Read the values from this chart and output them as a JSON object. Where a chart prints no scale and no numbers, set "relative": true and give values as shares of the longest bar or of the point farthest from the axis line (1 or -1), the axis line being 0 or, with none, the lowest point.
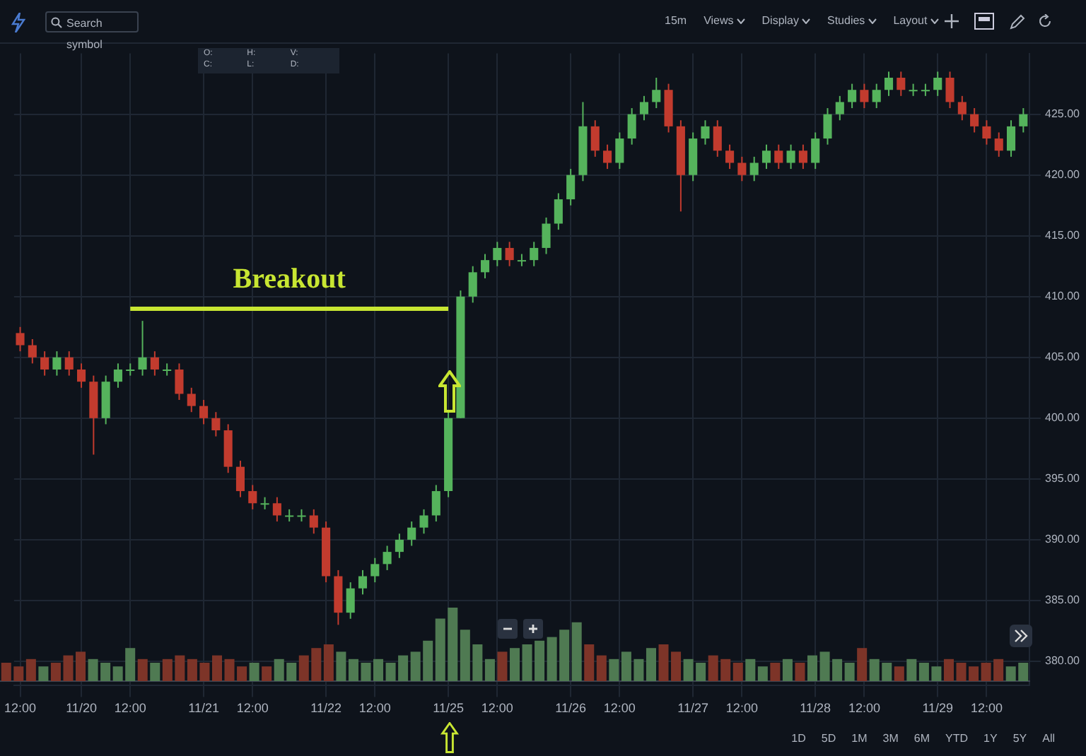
{
  "chart_data": [
    {
      "type": "candlestick",
      "grid": true,
      "ylim": [
        378,
        430
      ],
      "yticks": [
        {
          "value": 380,
          "label": "380.00"
        },
        {
          "value": 385,
          "label": "385.00"
        },
        {
          "value": 390,
          "label": "390.00"
        },
        {
          "value": 395,
          "label": "395.00"
        },
        {
          "value": 400,
          "label": "400.00"
        },
        {
          "value": 405,
          "label": "405.00"
        },
        {
          "value": 410,
          "label": "410.00"
        },
        {
          "value": 415,
          "label": "415.00"
        },
        {
          "value": 420,
          "label": "420.00"
        },
        {
          "value": 425,
          "label": "425.00"
        }
      ],
      "categories": [
        "12:00",
        null,
        null,
        null,
        null,
        "11/20",
        null,
        null,
        null,
        "12:00",
        null,
        null,
        null,
        null,
        null,
        "11/21",
        null,
        null,
        null,
        "12:00",
        null,
        null,
        null,
        null,
        null,
        "11/22",
        null,
        null,
        null,
        "12:00",
        null,
        null,
        null,
        null,
        null,
        "11/25",
        null,
        null,
        null,
        "12:00",
        null,
        null,
        null,
        null,
        null,
        "11/26",
        null,
        null,
        null,
        "12:00",
        null,
        null,
        null,
        null,
        null,
        "11/27",
        null,
        null,
        null,
        "12:00",
        null,
        null,
        null,
        null,
        null,
        "11/28",
        null,
        null,
        null,
        "12:00",
        null,
        null,
        null,
        null,
        null,
        "11/29",
        null,
        null,
        null,
        "12:00",
        null,
        null,
        null
      ],
      "ohlc": [
        [
          407,
          407.5,
          405.5,
          406
        ],
        [
          406,
          406.5,
          404.5,
          405
        ],
        [
          405,
          405.5,
          403.5,
          404
        ],
        [
          404,
          405.5,
          403.5,
          405
        ],
        [
          405,
          405.5,
          403.5,
          404
        ],
        [
          404,
          404.5,
          402.5,
          403
        ],
        [
          403,
          403.5,
          397,
          400
        ],
        [
          400,
          403.5,
          399.5,
          403
        ],
        [
          403,
          404.5,
          402.5,
          404
        ],
        [
          404,
          404.5,
          403.5,
          404
        ],
        [
          404,
          408,
          403.5,
          405
        ],
        [
          405,
          405.5,
          403.5,
          404
        ],
        [
          404,
          404.5,
          403.5,
          404
        ],
        [
          404,
          404.5,
          401.5,
          402
        ],
        [
          402,
          402.5,
          400.5,
          401
        ],
        [
          401,
          401.5,
          399.5,
          400
        ],
        [
          400,
          400.5,
          398.5,
          399
        ],
        [
          399,
          399.5,
          395.5,
          396
        ],
        [
          396,
          396.5,
          393.5,
          394
        ],
        [
          394,
          394.5,
          392.5,
          393
        ],
        [
          393,
          393.5,
          392.5,
          393
        ],
        [
          393,
          393.5,
          391.5,
          392
        ],
        [
          392,
          392.5,
          391.5,
          392
        ],
        [
          392,
          392.5,
          391.5,
          392
        ],
        [
          392,
          392.5,
          390.5,
          391
        ],
        [
          391,
          391.5,
          386.5,
          387
        ],
        [
          387,
          387.5,
          383,
          384
        ],
        [
          384,
          386.5,
          383.5,
          386
        ],
        [
          386,
          387.5,
          385.5,
          387
        ],
        [
          387,
          388.5,
          386.5,
          388
        ],
        [
          388,
          389.5,
          387.5,
          389
        ],
        [
          389,
          390.5,
          388.5,
          390
        ],
        [
          390,
          391.5,
          389.5,
          391
        ],
        [
          391,
          392.5,
          390.5,
          392
        ],
        [
          392,
          394.5,
          391.5,
          394
        ],
        [
          394,
          400.5,
          393.5,
          400
        ],
        [
          400,
          410.5,
          400,
          410
        ],
        [
          410,
          412.5,
          409.5,
          412
        ],
        [
          412,
          413.5,
          411.5,
          413
        ],
        [
          413,
          414.5,
          412.5,
          414
        ],
        [
          414,
          414.5,
          412.5,
          413
        ],
        [
          413,
          413.5,
          412.5,
          413
        ],
        [
          413,
          414.5,
          412.5,
          414
        ],
        [
          414,
          416.5,
          413.5,
          416
        ],
        [
          416,
          418.5,
          415.5,
          418
        ],
        [
          418,
          420.5,
          417.5,
          420
        ],
        [
          420,
          426,
          419.5,
          424
        ],
        [
          424,
          424.5,
          421.5,
          422
        ],
        [
          422,
          422.5,
          420.5,
          421
        ],
        [
          421,
          423.5,
          420.5,
          423
        ],
        [
          423,
          425.5,
          422.5,
          425
        ],
        [
          425,
          426.5,
          424.5,
          426
        ],
        [
          426,
          428,
          425.5,
          427
        ],
        [
          427,
          427.5,
          423.5,
          424
        ],
        [
          424,
          424.5,
          417,
          420
        ],
        [
          420,
          423.5,
          419.5,
          423
        ],
        [
          423,
          424.5,
          422.5,
          424
        ],
        [
          424,
          424.5,
          421.5,
          422
        ],
        [
          422,
          422.5,
          420.5,
          421
        ],
        [
          421,
          421.5,
          419.5,
          420
        ],
        [
          420,
          421.5,
          419.5,
          421
        ],
        [
          421,
          422.5,
          420.5,
          422
        ],
        [
          422,
          422.5,
          420.5,
          421
        ],
        [
          421,
          422.5,
          420.5,
          422
        ],
        [
          422,
          422.5,
          420.5,
          421
        ],
        [
          421,
          423.5,
          420.5,
          423
        ],
        [
          423,
          425.5,
          422.5,
          425
        ],
        [
          425,
          426.5,
          424.5,
          426
        ],
        [
          426,
          427.5,
          425.5,
          427
        ],
        [
          427,
          427.5,
          425.5,
          426
        ],
        [
          426,
          427.5,
          425.5,
          427
        ],
        [
          427,
          428.5,
          426.5,
          428
        ],
        [
          428,
          428.5,
          426.5,
          427
        ],
        [
          427,
          427.5,
          426.5,
          427
        ],
        [
          427,
          427.5,
          426.5,
          427
        ],
        [
          427,
          428.5,
          426.5,
          428
        ],
        [
          428,
          428.5,
          425.5,
          426
        ],
        [
          426,
          426.5,
          424.5,
          425
        ],
        [
          425,
          425.5,
          423.5,
          424
        ],
        [
          424,
          424.5,
          422.5,
          423
        ],
        [
          423,
          423.5,
          421.5,
          422
        ],
        [
          422,
          424.5,
          421.5,
          424
        ],
        [
          424,
          425.5,
          423.5,
          425
        ]
      ],
      "colors": [
        "#c23b2e",
        "#c23b2e",
        "#c23b2e",
        "#55b35c",
        "#c23b2e",
        "#c23b2e",
        "#c23b2e",
        "#55b35c",
        "#55b35c",
        "#55b35c",
        "#55b35c",
        "#c23b2e",
        "#55b35c",
        "#c23b2e",
        "#c23b2e",
        "#c23b2e",
        "#c23b2e",
        "#c23b2e",
        "#c23b2e",
        "#c23b2e",
        "#55b35c",
        "#c23b2e",
        "#55b35c",
        "#55b35c",
        "#c23b2e",
        "#c23b2e",
        "#c23b2e",
        "#55b35c",
        "#55b35c",
        "#55b35c",
        "#55b35c",
        "#55b35c",
        "#55b35c",
        "#55b35c",
        "#55b35c",
        "#55b35c",
        "#55b35c",
        "#55b35c",
        "#55b35c",
        "#55b35c",
        "#c23b2e",
        "#55b35c",
        "#55b35c",
        "#55b35c",
        "#55b35c",
        "#55b35c",
        "#55b35c",
        "#c23b2e",
        "#c23b2e",
        "#55b35c",
        "#55b35c",
        "#55b35c",
        "#55b35c",
        "#c23b2e",
        "#c23b2e",
        "#55b35c",
        "#55b35c",
        "#c23b2e",
        "#c23b2e",
        "#c23b2e",
        "#55b35c",
        "#55b35c",
        "#c23b2e",
        "#55b35c",
        "#c23b2e",
        "#55b35c",
        "#55b35c",
        "#55b35c",
        "#55b35c",
        "#c23b2e",
        "#55b35c",
        "#55b35c",
        "#c23b2e",
        "#55b35c",
        "#55b35c",
        "#55b35c",
        "#c23b2e",
        "#c23b2e",
        "#c23b2e",
        "#c23b2e",
        "#c23b2e",
        "#55b35c",
        "#55b35c"
      ],
      "series": [
        {
          "type": "line",
          "color": "#c8e632",
          "values": [
            null,
            null,
            null,
            null,
            null,
            null,
            null,
            null,
            null,
            409,
            409,
            409,
            409,
            409,
            409,
            409,
            409,
            409,
            409,
            409,
            409,
            409,
            409,
            409,
            409,
            409,
            409,
            409,
            409,
            409,
            409,
            409,
            409,
            409,
            409,
            409,
            null,
            null,
            null,
            null,
            null,
            null,
            null,
            null,
            null,
            null,
            null,
            null,
            null,
            null,
            null,
            null,
            null,
            null,
            null,
            null,
            null,
            null,
            null,
            null,
            null,
            null,
            null,
            null,
            null,
            null,
            null,
            null,
            null,
            null,
            null,
            null,
            null,
            null,
            null,
            null,
            null,
            null,
            null,
            null,
            null,
            null,
            null
          ]
        }
      ],
      "annotations": [
        {
          "text": "Breakout",
          "y": 409
        },
        "Search symbol",
        "15m",
        "Views",
        "Display",
        "Studies",
        "Layout",
        "O:",
        "H:",
        "V:",
        "C:",
        "L:",
        "D:",
        "1D",
        "5D",
        "1M",
        "3M",
        "6M",
        "YTD",
        "1Y",
        "5Y",
        "All"
      ]
    },
    {
      "type": "bar",
      "relative": true,
      "categories": [
        null,
        null,
        null,
        null,
        null,
        null,
        null,
        null,
        null,
        null,
        null,
        null,
        null,
        null,
        null,
        null,
        null,
        null,
        null,
        null,
        null,
        null,
        null,
        null,
        null,
        null,
        null,
        null,
        null,
        null,
        null,
        null,
        null,
        null,
        null,
        null,
        null,
        null,
        null,
        null,
        null,
        null,
        null,
        null,
        null,
        null,
        null,
        null,
        null,
        null,
        null,
        null,
        null,
        null,
        null,
        null,
        null,
        null,
        null,
        null,
        null,
        null,
        null,
        null,
        null,
        null,
        null,
        null,
        null,
        null,
        null,
        null,
        null,
        null,
        null,
        null,
        null,
        null,
        null,
        null,
        null,
        null,
        null
      ],
      "values": [
        0.25,
        0.2,
        0.3,
        0.2,
        0.25,
        0.35,
        0.4,
        0.3,
        0.25,
        0.2,
        0.45,
        0.3,
        0.25,
        0.3,
        0.35,
        0.3,
        0.25,
        0.35,
        0.3,
        0.2,
        0.25,
        0.2,
        0.3,
        0.25,
        0.35,
        0.45,
        0.5,
        0.4,
        0.3,
        0.25,
        0.3,
        0.25,
        0.35,
        0.4,
        0.55,
        0.85,
        1,
        0.7,
        0.5,
        0.3,
        0.4,
        0.45,
        0.5,
        0.55,
        0.6,
        0.7,
        0.8,
        0.5,
        0.35,
        0.3,
        0.4,
        0.3,
        0.45,
        0.5,
        0.4,
        0.3,
        0.25,
        0.35,
        0.3,
        0.25,
        0.3,
        0.2,
        0.25,
        0.3,
        0.25,
        0.35,
        0.4,
        0.3,
        0.25,
        0.45,
        0.3,
        0.25,
        0.2,
        0.3,
        0.25,
        0.2,
        0.3,
        0.25,
        0.2,
        0.25,
        0.3,
        0.2,
        0.25
      ],
      "colors": [
        "#7d3428",
        "#7d3428",
        "#7d3428",
        "#4f7a52",
        "#7d3428",
        "#7d3428",
        "#7d3428",
        "#4f7a52",
        "#4f7a52",
        "#4f7a52",
        "#4f7a52",
        "#7d3428",
        "#4f7a52",
        "#7d3428",
        "#7d3428",
        "#7d3428",
        "#7d3428",
        "#7d3428",
        "#7d3428",
        "#7d3428",
        "#4f7a52",
        "#7d3428",
        "#4f7a52",
        "#4f7a52",
        "#7d3428",
        "#7d3428",
        "#7d3428",
        "#4f7a52",
        "#4f7a52",
        "#4f7a52",
        "#4f7a52",
        "#4f7a52",
        "#4f7a52",
        "#4f7a52",
        "#4f7a52",
        "#4f7a52",
        "#4f7a52",
        "#4f7a52",
        "#4f7a52",
        "#4f7a52",
        "#7d3428",
        "#4f7a52",
        "#4f7a52",
        "#4f7a52",
        "#4f7a52",
        "#4f7a52",
        "#4f7a52",
        "#7d3428",
        "#7d3428",
        "#4f7a52",
        "#4f7a52",
        "#4f7a52",
        "#4f7a52",
        "#7d3428",
        "#7d3428",
        "#4f7a52",
        "#4f7a52",
        "#7d3428",
        "#7d3428",
        "#7d3428",
        "#4f7a52",
        "#4f7a52",
        "#7d3428",
        "#4f7a52",
        "#7d3428",
        "#4f7a52",
        "#4f7a52",
        "#4f7a52",
        "#4f7a52",
        "#7d3428",
        "#4f7a52",
        "#4f7a52",
        "#7d3428",
        "#4f7a52",
        "#4f7a52",
        "#4f7a52",
        "#7d3428",
        "#7d3428",
        "#7d3428",
        "#7d3428",
        "#7d3428",
        "#4f7a52",
        "#4f7a52"
      ]
    }
  ]
}
